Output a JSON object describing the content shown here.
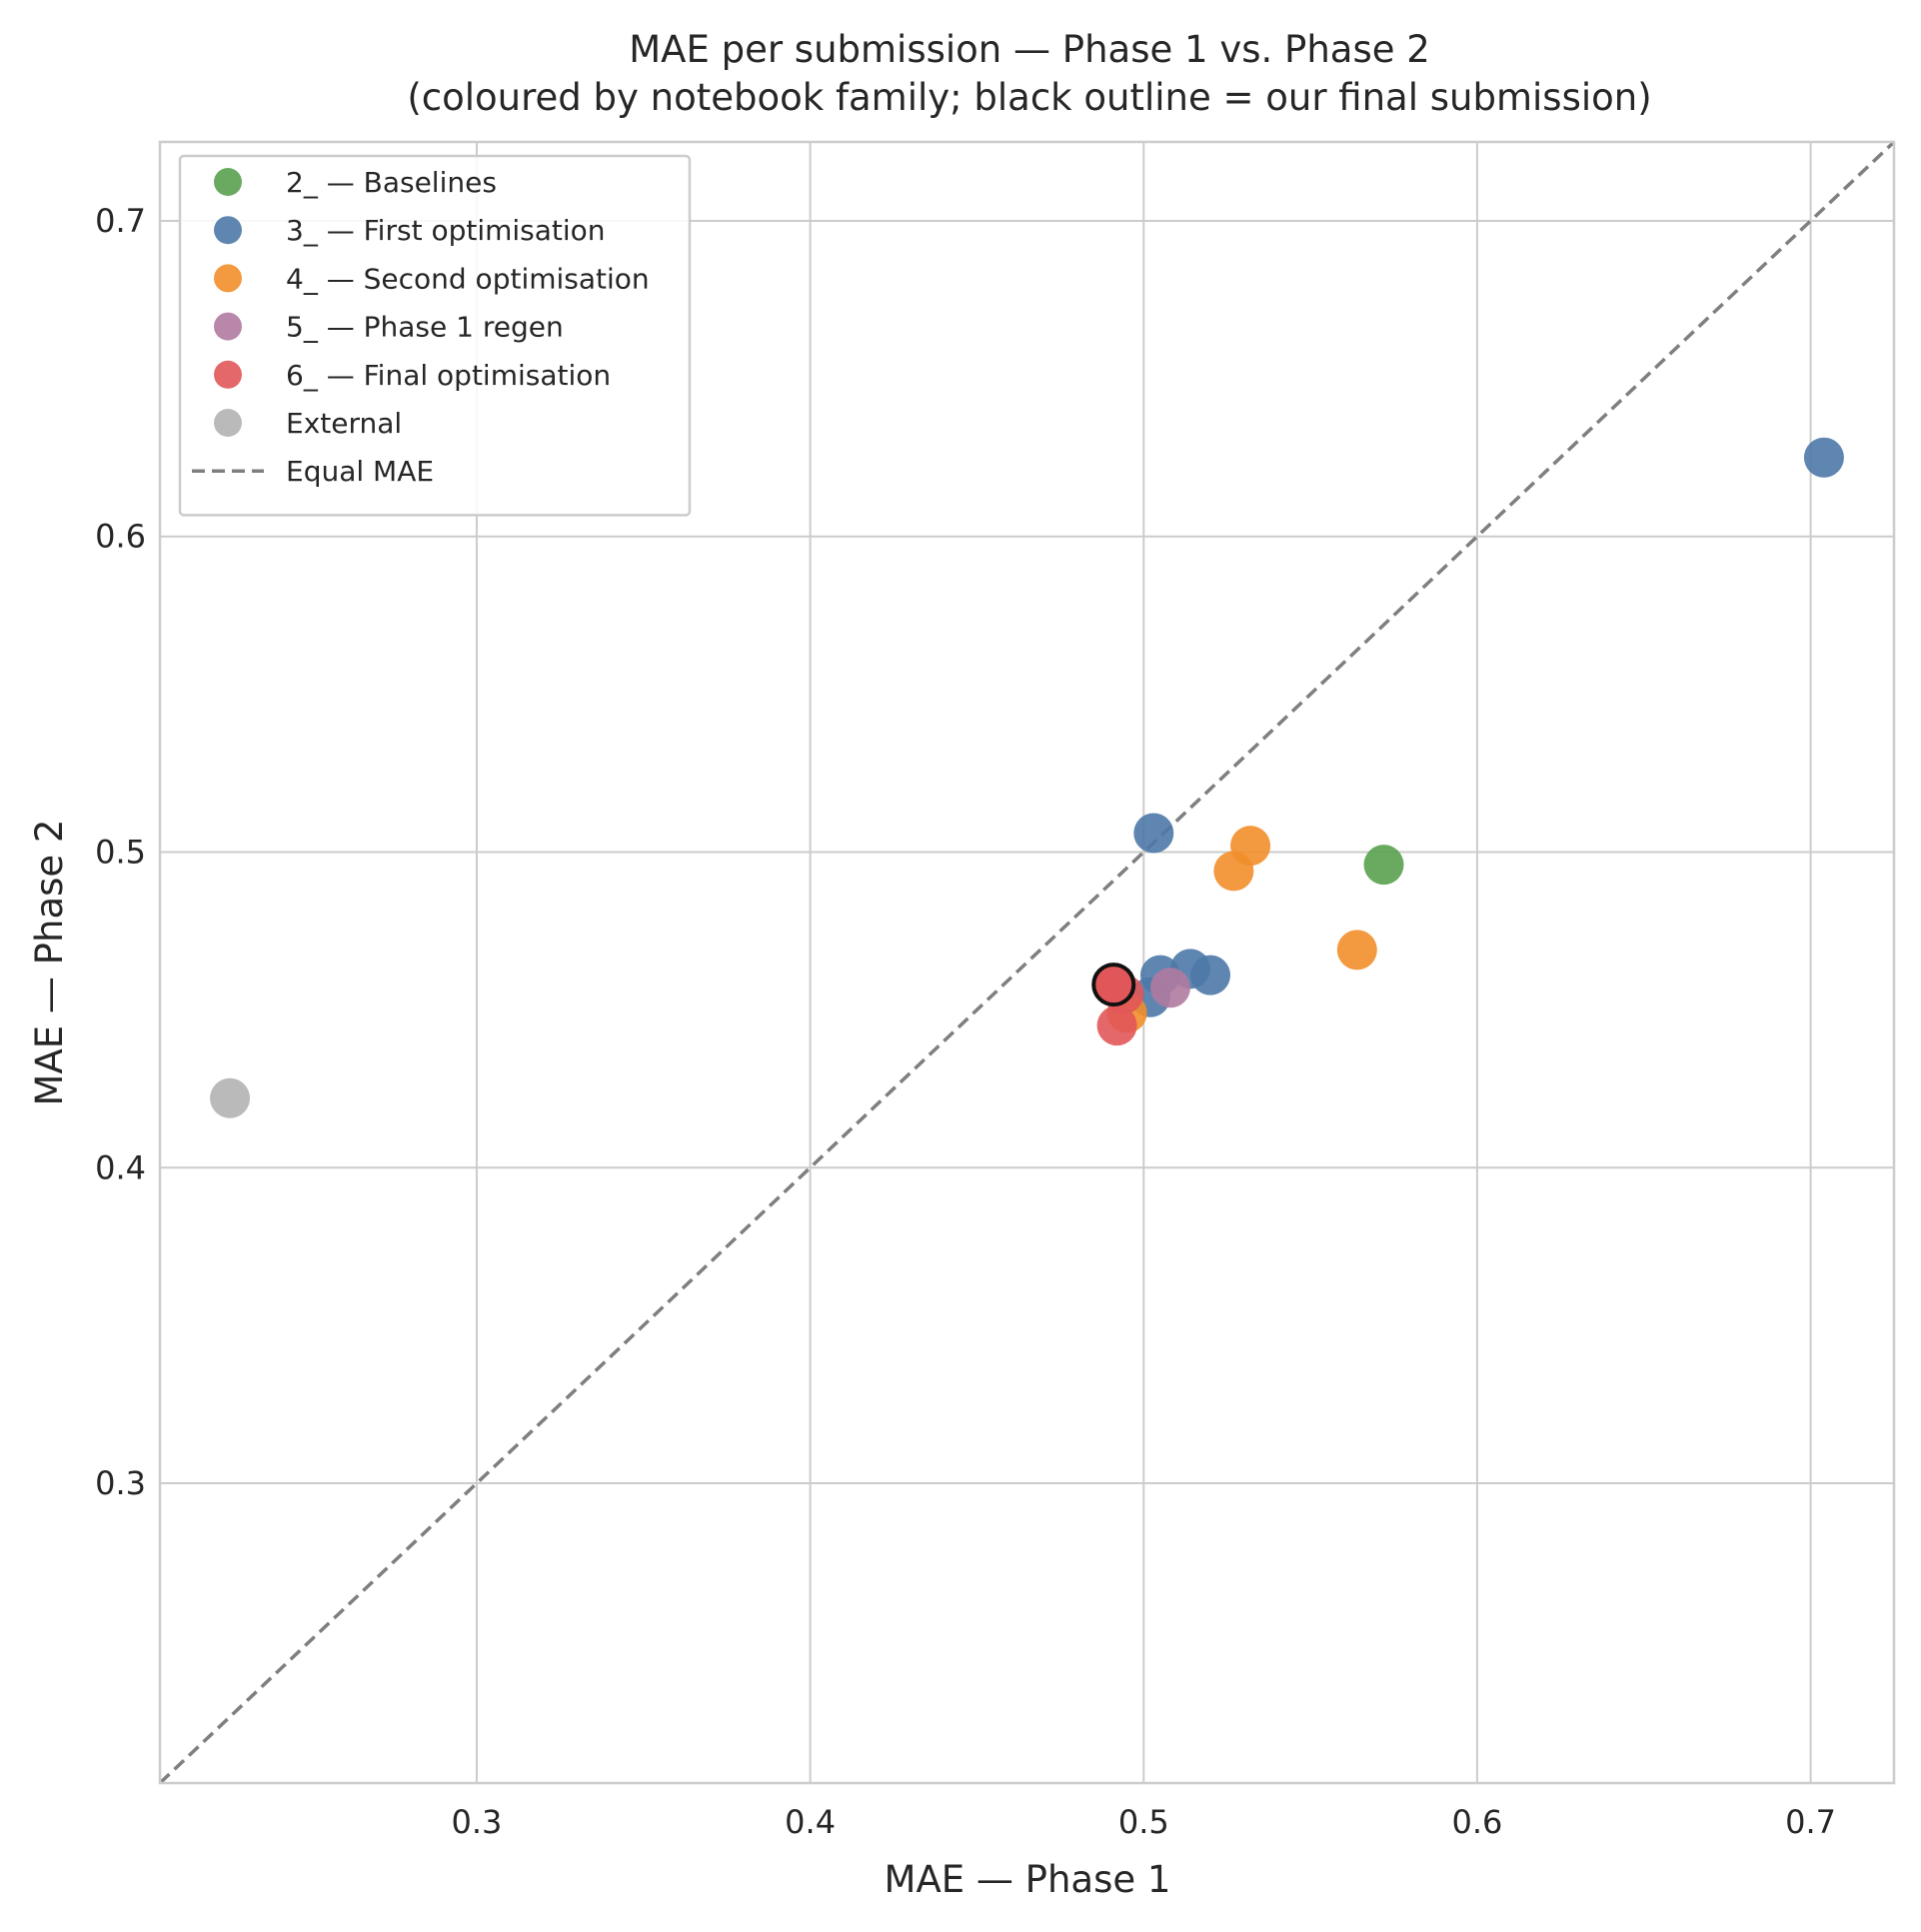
{
  "chart_data": {
    "type": "scatter",
    "title": "MAE per submission — Phase 1 vs. Phase 2",
    "subtitle": "(coloured by notebook family; black outline = our final submission)",
    "xlabel": "MAE — Phase 1",
    "ylabel": "MAE — Phase 2",
    "xlim": [
      0.205,
      0.725
    ],
    "ylim": [
      0.205,
      0.725
    ],
    "x_ticks": [
      0.3,
      0.4,
      0.5,
      0.6,
      0.7
    ],
    "y_ticks": [
      0.3,
      0.4,
      0.5,
      0.6,
      0.7
    ],
    "x_tick_labels": [
      "0.3",
      "0.4",
      "0.5",
      "0.6",
      "0.7"
    ],
    "y_tick_labels": [
      "0.3",
      "0.4",
      "0.5",
      "0.6",
      "0.7"
    ],
    "grid": true,
    "legend_position": "top-left",
    "reference_line": {
      "label": "Equal MAE",
      "color": "#7f7f7f",
      "style": "dashed"
    },
    "series": [
      {
        "name": "2_ — Baselines",
        "color": "#59a14f",
        "points": [
          {
            "x": 0.572,
            "y": 0.496
          }
        ]
      },
      {
        "name": "3_ — First optimisation",
        "color": "#4e79a7",
        "points": [
          {
            "x": 0.704,
            "y": 0.625
          },
          {
            "x": 0.503,
            "y": 0.506
          },
          {
            "x": 0.502,
            "y": 0.454
          },
          {
            "x": 0.505,
            "y": 0.461
          },
          {
            "x": 0.514,
            "y": 0.463
          },
          {
            "x": 0.52,
            "y": 0.461
          }
        ]
      },
      {
        "name": "4_ — Second optimisation",
        "color": "#f28e2b",
        "points": [
          {
            "x": 0.532,
            "y": 0.502
          },
          {
            "x": 0.527,
            "y": 0.494
          },
          {
            "x": 0.564,
            "y": 0.469
          },
          {
            "x": 0.495,
            "y": 0.449
          }
        ]
      },
      {
        "name": "5_ — Phase 1 regen",
        "color": "#b07aa1",
        "points": [
          {
            "x": 0.508,
            "y": 0.457
          }
        ]
      },
      {
        "name": "6_ — Final optimisation",
        "color": "#e15759",
        "points": [
          {
            "x": 0.492,
            "y": 0.445
          },
          {
            "x": 0.494,
            "y": 0.455
          },
          {
            "x": 0.491,
            "y": 0.458
          }
        ]
      },
      {
        "name": "External",
        "color": "#b3b3b3",
        "points": [
          {
            "x": 0.226,
            "y": 0.422
          }
        ]
      }
    ],
    "highlight": {
      "series": "6_ — Final optimisation",
      "x": 0.491,
      "y": 0.458,
      "outline_color": "#111111"
    }
  }
}
